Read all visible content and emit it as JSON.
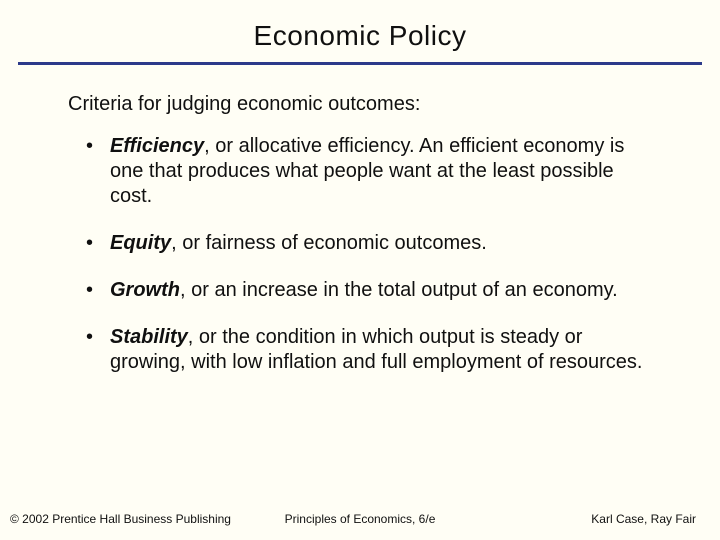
{
  "colors": {
    "background": "#fffef5",
    "text": "#101010",
    "underline": "#2c3a8a"
  },
  "title": "Economic Policy",
  "subtitle": "Criteria for judging economic outcomes:",
  "bullets": [
    {
      "term": "Efficiency",
      "rest": ", or allocative efficiency.  An efficient economy is one that produces what people want at the least possible cost."
    },
    {
      "term": "Equity",
      "rest": ", or fairness of economic outcomes."
    },
    {
      "term": "Growth",
      "rest": ", or an increase in the total output of an economy."
    },
    {
      "term": "Stability",
      "rest": ", or the condition in which output is steady or growing, with low inflation and full employment of resources."
    }
  ],
  "footer": {
    "left": "© 2002 Prentice Hall Business Publishing",
    "center": "Principles of Economics, 6/e",
    "right": "Karl Case, Ray Fair"
  },
  "typography": {
    "title_fontsize": 28,
    "subtitle_fontsize": 20,
    "bullet_fontsize": 20,
    "footer_fontsize": 12
  }
}
